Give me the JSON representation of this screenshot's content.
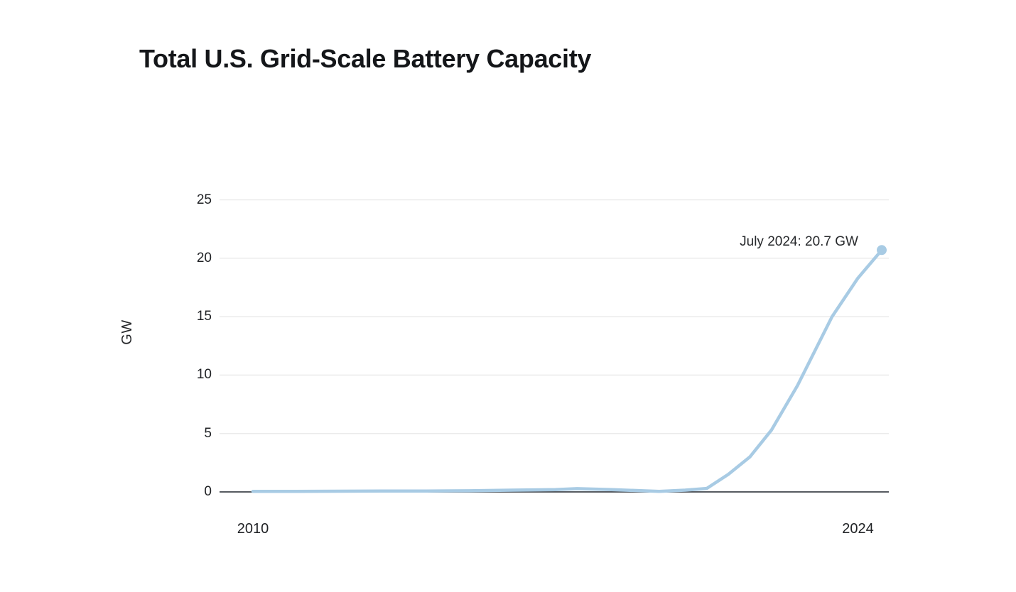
{
  "chart_data": {
    "type": "line",
    "title": "Total U.S. Grid-Scale Battery Capacity",
    "xlabel": "",
    "ylabel": "GW",
    "x_domain": [
      2010,
      2024.55
    ],
    "ylim": [
      0,
      25
    ],
    "yticks": [
      0,
      5,
      10,
      15,
      20,
      25
    ],
    "xticks": [
      {
        "value": 2010,
        "label": "2010"
      },
      {
        "value": 2024,
        "label": "2024"
      }
    ],
    "grid": "horizontal-only",
    "legend": "none",
    "annotation": {
      "text": "July 2024: 20.7 GW",
      "x": 2024.55,
      "y": 20.7
    },
    "series": [
      {
        "name": "capacity_gw",
        "points": [
          [
            2010,
            0.05
          ],
          [
            2011,
            0.05
          ],
          [
            2012,
            0.06
          ],
          [
            2013,
            0.08
          ],
          [
            2014,
            0.08
          ],
          [
            2015,
            0.1
          ],
          [
            2016,
            0.15
          ],
          [
            2017,
            0.2
          ],
          [
            2017.5,
            0.28
          ],
          [
            2018.3,
            0.2
          ],
          [
            2019.4,
            0.04
          ],
          [
            2020,
            0.15
          ],
          [
            2020.5,
            0.3
          ],
          [
            2021,
            1.5
          ],
          [
            2021.5,
            3.0
          ],
          [
            2022,
            5.3
          ],
          [
            2022.6,
            9.1
          ],
          [
            2023.4,
            15.0
          ],
          [
            2024,
            18.3
          ],
          [
            2024.55,
            20.7
          ]
        ]
      }
    ],
    "colors": {
      "line": "#a8cbe4",
      "marker": "#a8cbe4",
      "grid": "#ebebeb",
      "axis": "#565b61",
      "tick_text": "#202225",
      "title_text": "#141619"
    }
  }
}
